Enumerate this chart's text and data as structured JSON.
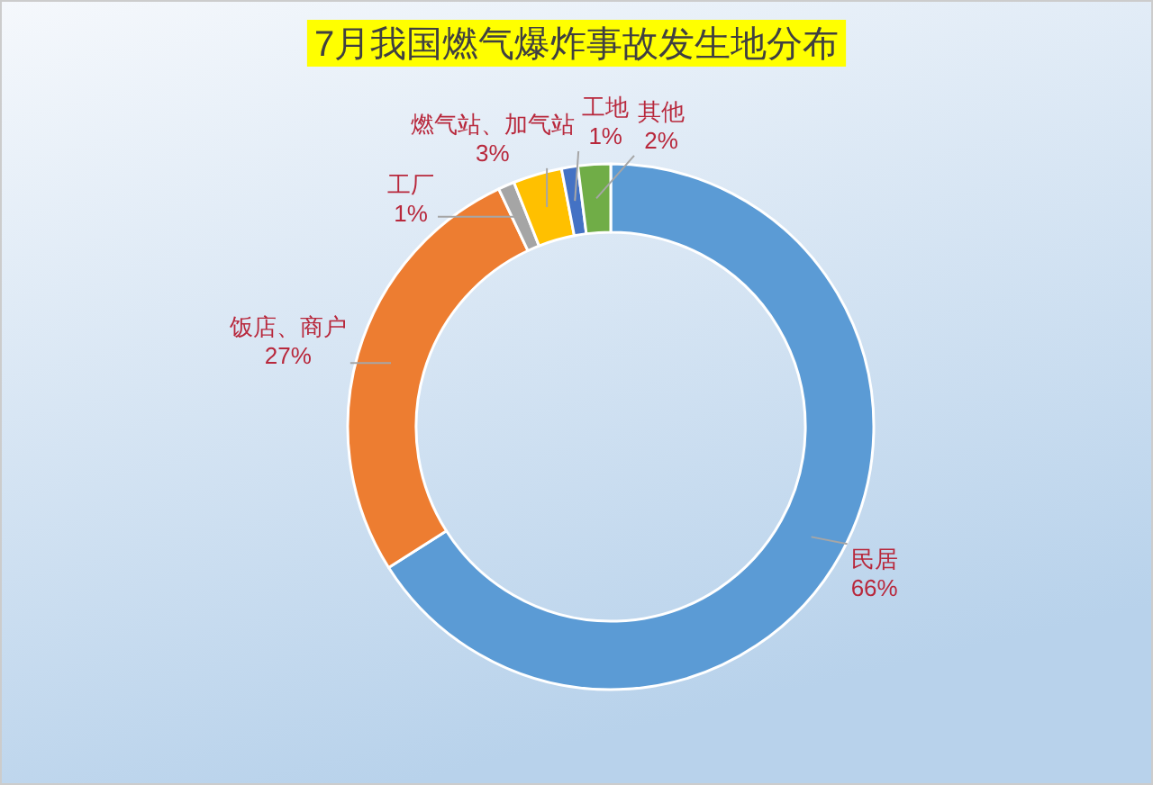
{
  "chart_data": {
    "type": "donut",
    "title": "7月我国燃气爆炸事故发生地分布",
    "categories": [
      "民居",
      "饭店、商户",
      "工厂",
      "燃气站、加气站",
      "工地",
      "其他"
    ],
    "values": [
      66,
      27,
      1,
      3,
      1,
      2
    ],
    "value_labels": [
      "66%",
      "27%",
      "1%",
      "3%",
      "1%",
      "2%"
    ],
    "colors": [
      "#5b9bd5",
      "#ed7d31",
      "#a5a5a5",
      "#ffc000",
      "#4472c4",
      "#70ad47"
    ]
  }
}
